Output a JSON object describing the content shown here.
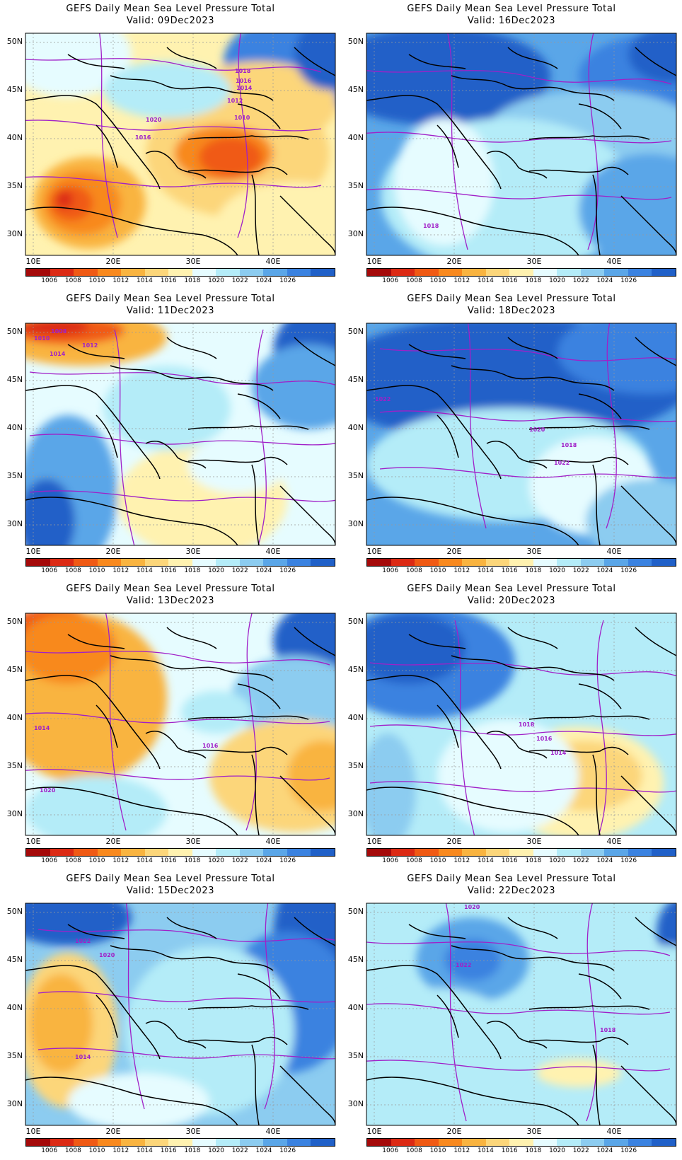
{
  "legend": {
    "levels": [
      "1006",
      "1008",
      "1010",
      "1012",
      "1014",
      "1016",
      "1018",
      "1020",
      "1022",
      "1024",
      "1026"
    ],
    "colors": [
      "#a50a0a",
      "#dc2a14",
      "#f05a14",
      "#f8891e",
      "#f9b440",
      "#fcd67a",
      "#fff2b0",
      "#e6fcff",
      "#b4ecf8",
      "#8cccf0",
      "#5aa6e8",
      "#3a82e0",
      "#2060c8"
    ]
  },
  "axes": {
    "lat": [
      "50N",
      "45N",
      "40N",
      "35N",
      "30N"
    ],
    "lon": [
      "10E",
      "20E",
      "30E",
      "40E"
    ]
  },
  "panels": [
    {
      "title": "GEFS Daily Mean Sea Level Pressure Total",
      "valid": "Valid: 09Dec2023",
      "contour_labels": [
        "1018",
        "1016",
        "1014",
        "1012",
        "1010",
        "1020",
        "1016"
      ]
    },
    {
      "title": "GEFS Daily Mean Sea Level Pressure Total",
      "valid": "Valid: 16Dec2023",
      "contour_labels": [
        "1018"
      ]
    },
    {
      "title": "GEFS Daily Mean Sea Level Pressure Total",
      "valid": "Valid: 11Dec2023",
      "contour_labels": [
        "1008",
        "1010",
        "1012",
        "1014"
      ]
    },
    {
      "title": "GEFS Daily Mean Sea Level Pressure Total",
      "valid": "Valid: 18Dec2023",
      "contour_labels": [
        "1022",
        "1020",
        "1018",
        "1022"
      ]
    },
    {
      "title": "GEFS Daily Mean Sea Level Pressure Total",
      "valid": "Valid: 13Dec2023",
      "contour_labels": [
        "1014",
        "1016",
        "1020"
      ]
    },
    {
      "title": "GEFS Daily Mean Sea Level Pressure Total",
      "valid": "Valid: 20Dec2023",
      "contour_labels": [
        "1018",
        "1016",
        "1014"
      ]
    },
    {
      "title": "GEFS Daily Mean Sea Level Pressure Total",
      "valid": "Valid: 15Dec2023",
      "contour_labels": [
        "1022",
        "1020",
        "1014"
      ]
    },
    {
      "title": "GEFS Daily Mean Sea Level Pressure Total",
      "valid": "Valid: 22Dec2023",
      "contour_labels": [
        "1020",
        "1022",
        "1018"
      ]
    }
  ]
}
